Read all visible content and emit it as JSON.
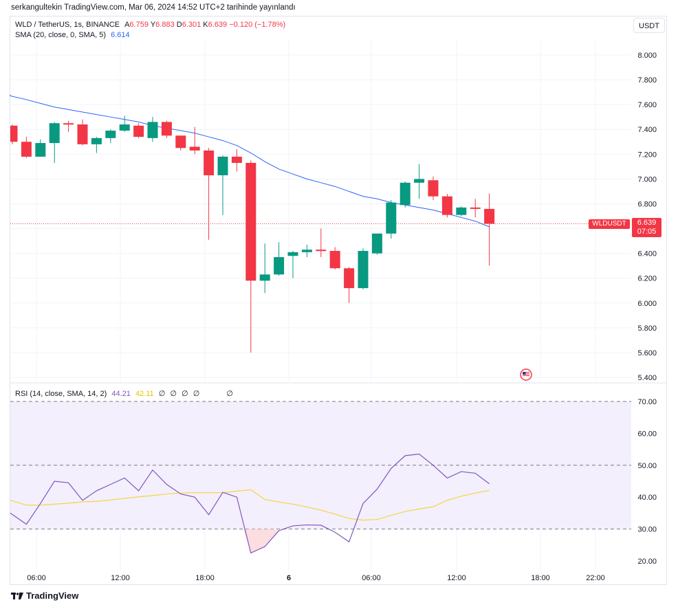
{
  "header": {
    "text": "serkangultekin TradingView.com, Mar 06, 2024 14:52 UTC+2 tarihinde yayınlandı"
  },
  "legend": {
    "symbol": "WLD / TetherUS, 1s, BINANCE",
    "o_label": "A",
    "o_value": "6.759",
    "h_label": "Y",
    "h_value": "6.883",
    "l_label": "D",
    "l_value": "6.301",
    "c_label": "K",
    "c_value": "6.639",
    "change": "−0.120 (−1.78%)",
    "sma_label": "SMA (20, close, 0, SMA, 5)",
    "sma_value": "6.614",
    "rsi_label": "RSI (14, close, SMA, 14, 2)",
    "rsi_value": "44.21",
    "rsi_ma_value": "42.11",
    "rsi_na_1": "∅",
    "rsi_na_2": "∅",
    "rsi_na_3": "∅",
    "rsi_na_4": "∅",
    "rsi_na_5": "∅"
  },
  "currency_button": "USDT",
  "price_tag": {
    "symbol": "WLDUSDT",
    "price": "6.639",
    "countdown": "07:05"
  },
  "brand": "TradingView",
  "colors": {
    "up": "#089981",
    "down": "#f23645",
    "sma": "#2962ff",
    "rsi": "#7e57c2",
    "rsi_ma": "#f5d442",
    "rsi_band": "#f3effc"
  },
  "chart_data": [
    {
      "type": "candlestick",
      "title": "WLD / TetherUS, 1s, BINANCE",
      "ylim": [
        5.35,
        8.15
      ],
      "y_ticks": [
        "8.000",
        "7.800",
        "7.600",
        "7.400",
        "7.200",
        "7.000",
        "6.800",
        "6.600",
        "6.400",
        "6.200",
        "6.000",
        "5.800",
        "5.600",
        "5.400"
      ],
      "x_ticks": [
        "06:00",
        "12:00",
        "18:00",
        "6",
        "06:00",
        "12:00",
        "18:00",
        "22:00"
      ],
      "candles": [
        {
          "o": 7.43,
          "h": 7.44,
          "l": 7.28,
          "c": 7.3
        },
        {
          "o": 7.3,
          "h": 7.34,
          "l": 7.17,
          "c": 7.18
        },
        {
          "o": 7.18,
          "h": 7.32,
          "l": 7.18,
          "c": 7.29
        },
        {
          "o": 7.29,
          "h": 7.46,
          "l": 7.13,
          "c": 7.45
        },
        {
          "o": 7.45,
          "h": 7.47,
          "l": 7.38,
          "c": 7.44
        },
        {
          "o": 7.44,
          "h": 7.48,
          "l": 7.27,
          "c": 7.28
        },
        {
          "o": 7.28,
          "h": 7.34,
          "l": 7.21,
          "c": 7.33
        },
        {
          "o": 7.33,
          "h": 7.4,
          "l": 7.29,
          "c": 7.39
        },
        {
          "o": 7.39,
          "h": 7.51,
          "l": 7.38,
          "c": 7.44
        },
        {
          "o": 7.43,
          "h": 7.45,
          "l": 7.33,
          "c": 7.34
        },
        {
          "o": 7.33,
          "h": 7.5,
          "l": 7.3,
          "c": 7.46
        },
        {
          "o": 7.46,
          "h": 7.47,
          "l": 7.33,
          "c": 7.35
        },
        {
          "o": 7.35,
          "h": 7.35,
          "l": 7.23,
          "c": 7.25
        },
        {
          "o": 7.26,
          "h": 7.42,
          "l": 7.2,
          "c": 7.23
        },
        {
          "o": 7.23,
          "h": 7.25,
          "l": 6.51,
          "c": 7.03
        },
        {
          "o": 7.03,
          "h": 7.19,
          "l": 6.71,
          "c": 7.18
        },
        {
          "o": 7.18,
          "h": 7.24,
          "l": 7.06,
          "c": 7.13
        },
        {
          "o": 7.13,
          "h": 7.15,
          "l": 5.6,
          "c": 6.18
        },
        {
          "o": 6.18,
          "h": 6.48,
          "l": 6.08,
          "c": 6.23
        },
        {
          "o": 6.23,
          "h": 6.49,
          "l": 6.22,
          "c": 6.37
        },
        {
          "o": 6.38,
          "h": 6.42,
          "l": 6.2,
          "c": 6.41
        },
        {
          "o": 6.41,
          "h": 6.47,
          "l": 6.37,
          "c": 6.43
        },
        {
          "o": 6.43,
          "h": 6.6,
          "l": 6.37,
          "c": 6.42
        },
        {
          "o": 6.42,
          "h": 6.45,
          "l": 6.27,
          "c": 6.28
        },
        {
          "o": 6.28,
          "h": 6.29,
          "l": 6.0,
          "c": 6.12
        },
        {
          "o": 6.12,
          "h": 6.44,
          "l": 6.11,
          "c": 6.42
        },
        {
          "o": 6.4,
          "h": 6.56,
          "l": 6.39,
          "c": 6.56
        },
        {
          "o": 6.56,
          "h": 6.83,
          "l": 6.52,
          "c": 6.81
        },
        {
          "o": 6.79,
          "h": 6.98,
          "l": 6.77,
          "c": 6.97
        },
        {
          "o": 6.97,
          "h": 7.12,
          "l": 6.84,
          "c": 7.0
        },
        {
          "o": 6.99,
          "h": 7.02,
          "l": 6.83,
          "c": 6.86
        },
        {
          "o": 6.86,
          "h": 6.88,
          "l": 6.69,
          "c": 6.71
        },
        {
          "o": 6.71,
          "h": 6.78,
          "l": 6.7,
          "c": 6.77
        },
        {
          "o": 6.77,
          "h": 6.84,
          "l": 6.69,
          "c": 6.76
        },
        {
          "o": 6.759,
          "h": 6.883,
          "l": 6.301,
          "c": 6.639
        }
      ],
      "sma": [
        7.67,
        7.64,
        7.61,
        7.58,
        7.56,
        7.54,
        7.52,
        7.5,
        7.48,
        7.46,
        7.43,
        7.41,
        7.39,
        7.37,
        7.34,
        7.31,
        7.27,
        7.21,
        7.14,
        7.08,
        7.04,
        7.0,
        6.97,
        6.94,
        6.9,
        6.86,
        6.84,
        6.81,
        6.79,
        6.77,
        6.75,
        6.72,
        6.69,
        6.66,
        6.614
      ]
    },
    {
      "type": "line",
      "title": "RSI (14, close, SMA, 14, 2)",
      "ylim": [
        18,
        72
      ],
      "y_ticks": [
        "70.00",
        "60.00",
        "50.00",
        "40.00",
        "30.00",
        "20.00"
      ],
      "bands": [
        30,
        50,
        70
      ],
      "series": [
        {
          "name": "RSI",
          "values": [
            35,
            31.5,
            38,
            45,
            44.5,
            39,
            42,
            44,
            46,
            42,
            48.5,
            44,
            41,
            40,
            34.5,
            41.5,
            40,
            22.5,
            24.5,
            29.5,
            31,
            31.3,
            31.2,
            29,
            26,
            38,
            42.5,
            49,
            53,
            53.5,
            50,
            46,
            48,
            47.5,
            44.2
          ]
        },
        {
          "name": "RSI-MA",
          "values": [
            39,
            37.5,
            37.5,
            37.8,
            38.1,
            38.5,
            38.7,
            39.1,
            39.6,
            40.1,
            40.5,
            41,
            41.3,
            41.4,
            41.4,
            41.4,
            41.9,
            42.3,
            39.3,
            38.5,
            37.8,
            36.9,
            35.9,
            34.7,
            33.3,
            32.8,
            33,
            34.3,
            35.5,
            36.3,
            37,
            39,
            40.3,
            41.3,
            42.11
          ]
        }
      ]
    }
  ]
}
